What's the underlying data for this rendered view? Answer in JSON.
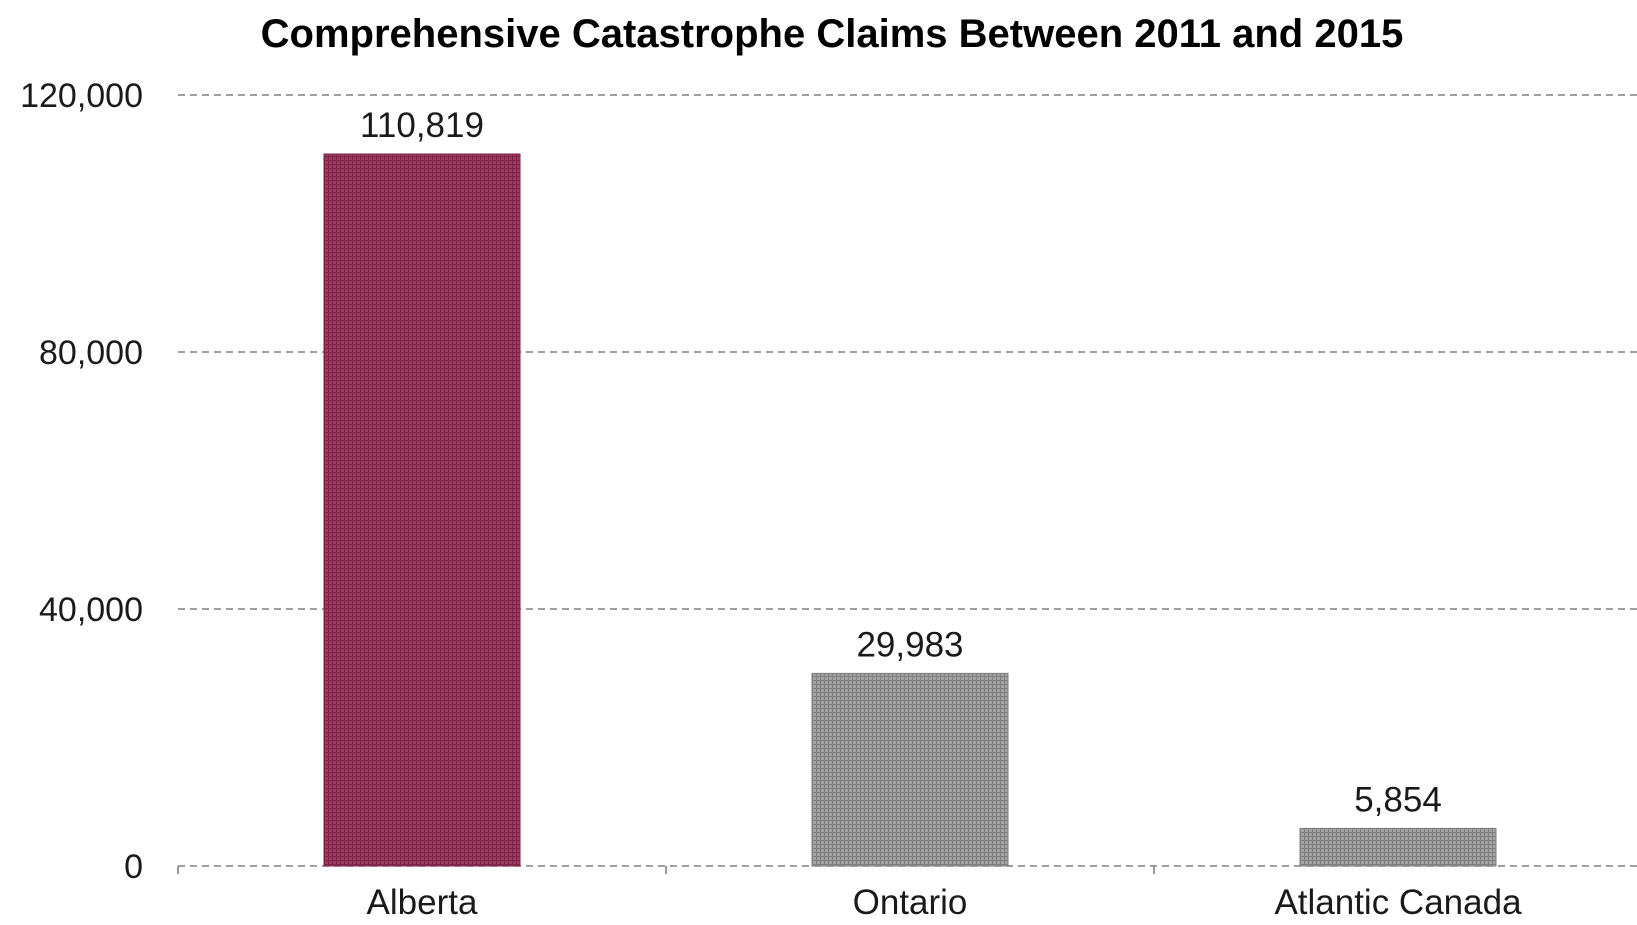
{
  "colors": {
    "highlight": "#a0395e",
    "highlight_dark": "#7c2347",
    "neutral": "#9a9a9a",
    "neutral_dark": "#7d7d7d",
    "grid": "#808080"
  },
  "chart_data": {
    "type": "bar",
    "title": "Comprehensive Catastrophe Claims Between 2011 and 2015",
    "xlabel": "",
    "ylabel": "",
    "categories": [
      "Alberta",
      "Ontario",
      "Atlantic Canada"
    ],
    "values": [
      110819,
      29983,
      5854
    ],
    "data_labels": [
      "110,819",
      "29,983",
      "5,854"
    ],
    "highlighted_category": "Alberta",
    "ylim": [
      0,
      120000
    ],
    "yticks": [
      0,
      40000,
      80000,
      120000
    ],
    "ytick_labels": [
      "0",
      "40,000",
      "80,000",
      "120,000"
    ],
    "grid": true,
    "grid_style": "dashed",
    "legend": "none"
  }
}
